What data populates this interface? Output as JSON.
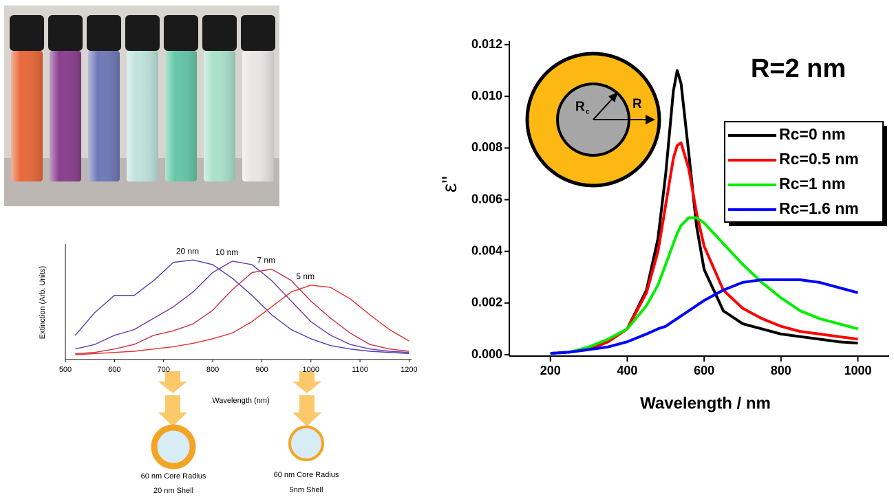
{
  "chart_data": [
    {
      "type": "line",
      "ylabel": "Extinction (Arb. Units)",
      "xlabel": "Wavelength (nm)",
      "xlim": [
        500,
        1205
      ],
      "ylim": [
        0,
        1
      ],
      "xticks": [
        500,
        600,
        700,
        800,
        900,
        1000,
        1100,
        1200
      ],
      "x": [
        520,
        560,
        600,
        640,
        680,
        720,
        760,
        800,
        840,
        880,
        920,
        960,
        1000,
        1040,
        1080,
        1120,
        1160,
        1200
      ],
      "series": [
        {
          "name": "20 nm",
          "color": "#4b3fb0",
          "values": [
            0.2,
            0.4,
            0.55,
            0.55,
            0.68,
            0.84,
            0.86,
            0.82,
            0.7,
            0.55,
            0.38,
            0.25,
            0.17,
            0.11,
            0.08,
            0.06,
            0.05,
            0.04
          ]
        },
        {
          "name": "10 nm",
          "color": "#6b3aa8",
          "values": [
            0.08,
            0.12,
            0.2,
            0.25,
            0.35,
            0.45,
            0.58,
            0.75,
            0.85,
            0.82,
            0.68,
            0.5,
            0.32,
            0.2,
            0.12,
            0.08,
            0.06,
            0.05
          ]
        },
        {
          "name": "7 nm",
          "color": "#c8304e",
          "values": [
            0.04,
            0.05,
            0.08,
            0.12,
            0.2,
            0.24,
            0.3,
            0.42,
            0.6,
            0.75,
            0.78,
            0.68,
            0.5,
            0.35,
            0.22,
            0.12,
            0.08,
            0.06
          ]
        },
        {
          "name": "5 nm",
          "color": "#e0302c",
          "values": [
            0.03,
            0.04,
            0.05,
            0.06,
            0.08,
            0.1,
            0.13,
            0.17,
            0.22,
            0.32,
            0.45,
            0.58,
            0.64,
            0.62,
            0.52,
            0.38,
            0.25,
            0.15
          ]
        }
      ],
      "annotations": [
        "60 nm Core Radius",
        "20 nm Shell",
        "60 nm Core Radius",
        "5nm Shell"
      ]
    },
    {
      "type": "line",
      "title": "R=2 nm",
      "ylabel": "ε\"",
      "xlabel": "Wavelength / nm",
      "inset_labels": [
        "R",
        "c",
        "R"
      ],
      "xlim": [
        93,
        1060
      ],
      "ylim": [
        0,
        0.012
      ],
      "xticks": [
        200,
        400,
        600,
        800,
        1000
      ],
      "yticks": [
        {
          "value": 0,
          "label": "0.000"
        },
        {
          "value": 0.002,
          "label": "0.002"
        },
        {
          "value": 0.004,
          "label": "0.004"
        },
        {
          "value": 0.006,
          "label": "0.006"
        },
        {
          "value": 0.008,
          "label": "0.008"
        },
        {
          "value": 0.01,
          "label": "0.010"
        },
        {
          "value": 0.012,
          "label": "0.012"
        }
      ],
      "x": [
        200,
        250,
        300,
        350,
        400,
        450,
        480,
        500,
        520,
        530,
        540,
        560,
        580,
        600,
        650,
        700,
        750,
        800,
        850,
        900,
        950,
        1000
      ],
      "series": [
        {
          "name": "Rc=0 nm",
          "color": "#000000",
          "values": [
            5e-05,
            0.0001,
            0.0002,
            0.0005,
            0.001,
            0.0025,
            0.0045,
            0.007,
            0.0102,
            0.011,
            0.0105,
            0.0078,
            0.005,
            0.0033,
            0.0017,
            0.0012,
            0.001,
            0.0008,
            0.0007,
            0.0006,
            0.0005,
            0.00045
          ]
        },
        {
          "name": "Rc=0.5 nm",
          "color": "#ff0000",
          "values": [
            5e-05,
            0.0001,
            0.0002,
            0.0005,
            0.001,
            0.0024,
            0.004,
            0.0058,
            0.0076,
            0.0081,
            0.0082,
            0.0072,
            0.0055,
            0.0042,
            0.0025,
            0.0018,
            0.0014,
            0.0011,
            0.0009,
            0.0008,
            0.0007,
            0.0006
          ]
        },
        {
          "name": "Rc=1 nm",
          "color": "#00ee00",
          "values": [
            5e-05,
            0.0001,
            0.0003,
            0.0006,
            0.001,
            0.0019,
            0.0027,
            0.0035,
            0.0043,
            0.0047,
            0.005,
            0.0053,
            0.0053,
            0.0051,
            0.0043,
            0.0035,
            0.0028,
            0.0022,
            0.0017,
            0.0014,
            0.0012,
            0.001
          ]
        },
        {
          "name": "Rc=1.6 nm",
          "color": "#0000ff",
          "values": [
            5e-05,
            0.0001,
            0.0002,
            0.0003,
            0.0005,
            0.0008,
            0.001,
            0.0011,
            0.0013,
            0.0014,
            0.0015,
            0.0017,
            0.0019,
            0.0021,
            0.0025,
            0.0028,
            0.0029,
            0.0029,
            0.0029,
            0.0028,
            0.0026,
            0.0024
          ]
        }
      ]
    }
  ]
}
